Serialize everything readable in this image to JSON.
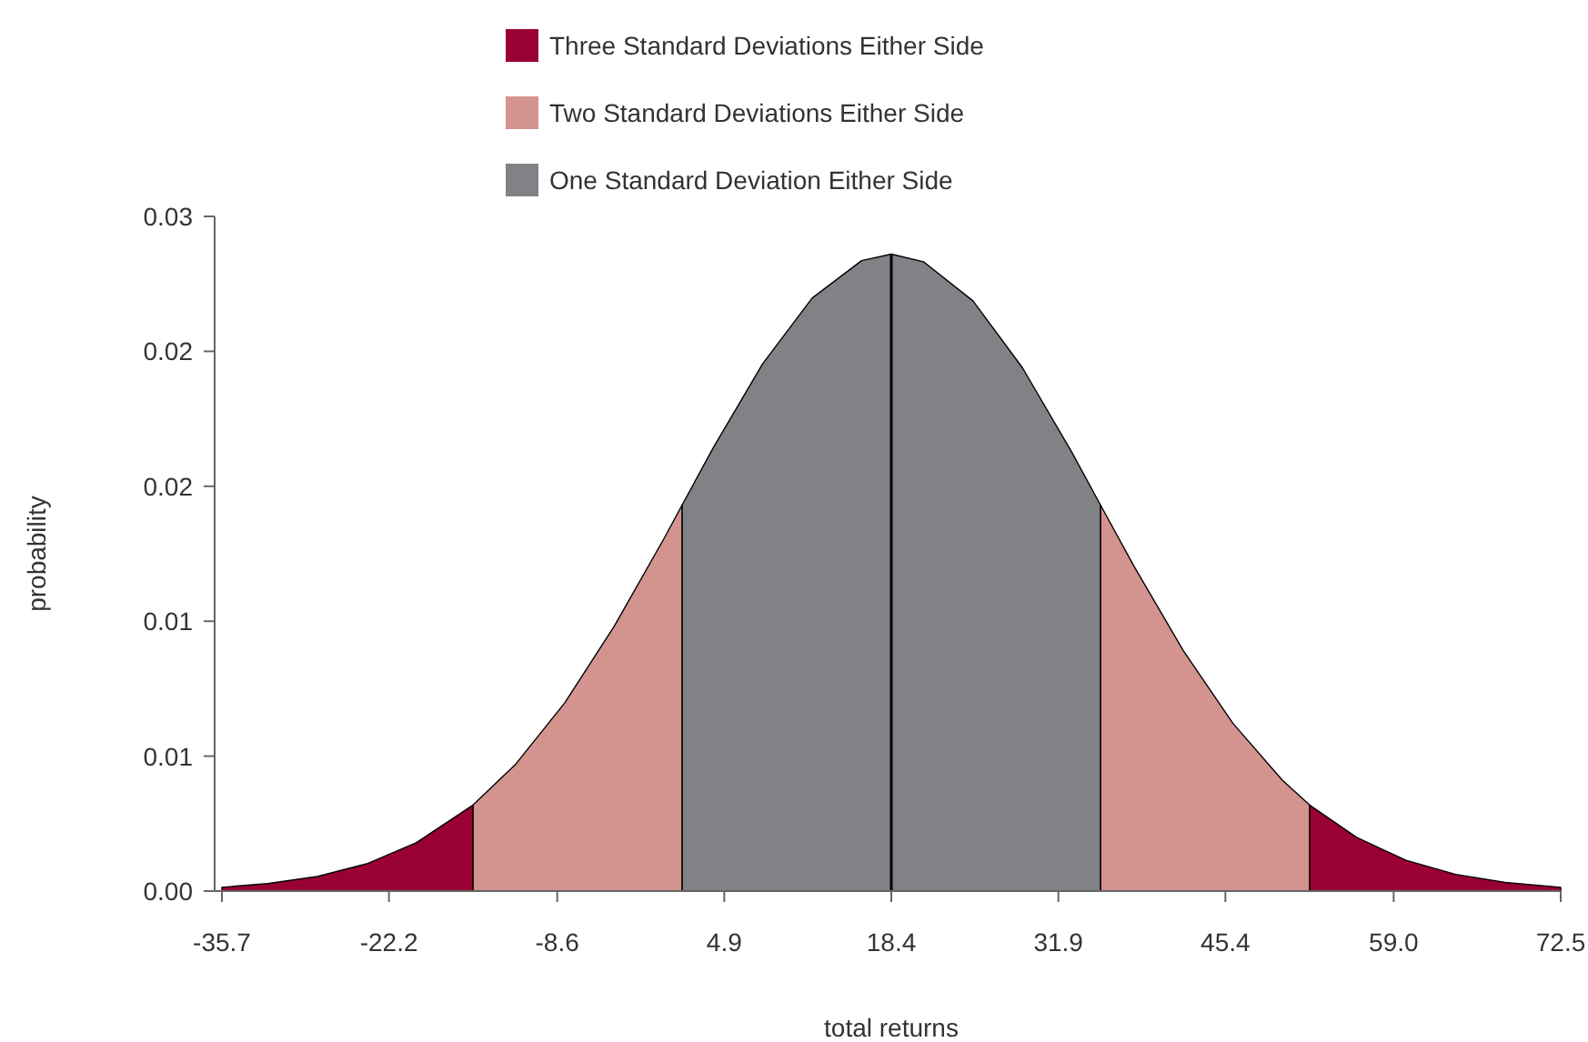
{
  "chart_data": {
    "type": "area",
    "xlabel": "total returns",
    "ylabel": "probability",
    "xlim": [
      -35.7,
      72.5
    ],
    "xticks": [
      -35.7,
      -22.2,
      -8.6,
      4.9,
      18.4,
      31.9,
      45.4,
      {
        "value": 59,
        "label": "59.0"
      },
      72.5
    ],
    "ylim": [
      0,
      0.025
    ],
    "yticks": [
      {
        "value": 0,
        "label": "0.00"
      },
      {
        "value": 0.005,
        "label": "0.01"
      },
      {
        "value": 0.01,
        "label": "0.01"
      },
      {
        "value": 0.015,
        "label": "0.02"
      },
      {
        "value": 0.02,
        "label": "0.02"
      },
      {
        "value": 0.025,
        "label": "0.03"
      }
    ],
    "grid": false,
    "legend": "top",
    "series": [
      {
        "name": "Three Standard Deviations Either Side",
        "color": "#990033",
        "x": [
          -35.7,
          -32,
          -28,
          -24,
          -20,
          -15.4,
          18.4,
          52.2,
          56,
          60,
          64,
          68,
          72.5
        ],
        "values": [
          0.00014,
          0.00028,
          0.00054,
          0.00101,
          0.00179,
          0.00319,
          null,
          0.00319,
          0.00199,
          0.00114,
          0.00062,
          0.00032,
          0.00014
        ]
      },
      {
        "name": "Two Standard Deviations Either Side",
        "color": "#d3938f",
        "x": [
          -15.4,
          -12,
          -8,
          -4,
          0,
          1.5,
          18.4,
          35.3,
          38,
          42,
          46,
          50,
          52.2
        ],
        "values": [
          0.00319,
          0.00468,
          0.00697,
          0.00981,
          0.01304,
          0.01431,
          null,
          0.01431,
          0.01205,
          0.00891,
          0.00622,
          0.00411,
          0.00319
        ]
      },
      {
        "name": "One Standard Deviation Either Side",
        "color": "#808285",
        "x": [
          1.5,
          4,
          8,
          12,
          16,
          18.4,
          21,
          25,
          29,
          33,
          35.3
        ],
        "values": [
          0.01431,
          0.01642,
          0.01954,
          0.02197,
          0.02336,
          0.0236,
          0.02332,
          0.02187,
          0.01939,
          0.01625,
          0.01431
        ]
      }
    ],
    "ref_lines": [
      {
        "axis": "x",
        "value": 18.4,
        "color": "#000000"
      }
    ]
  }
}
